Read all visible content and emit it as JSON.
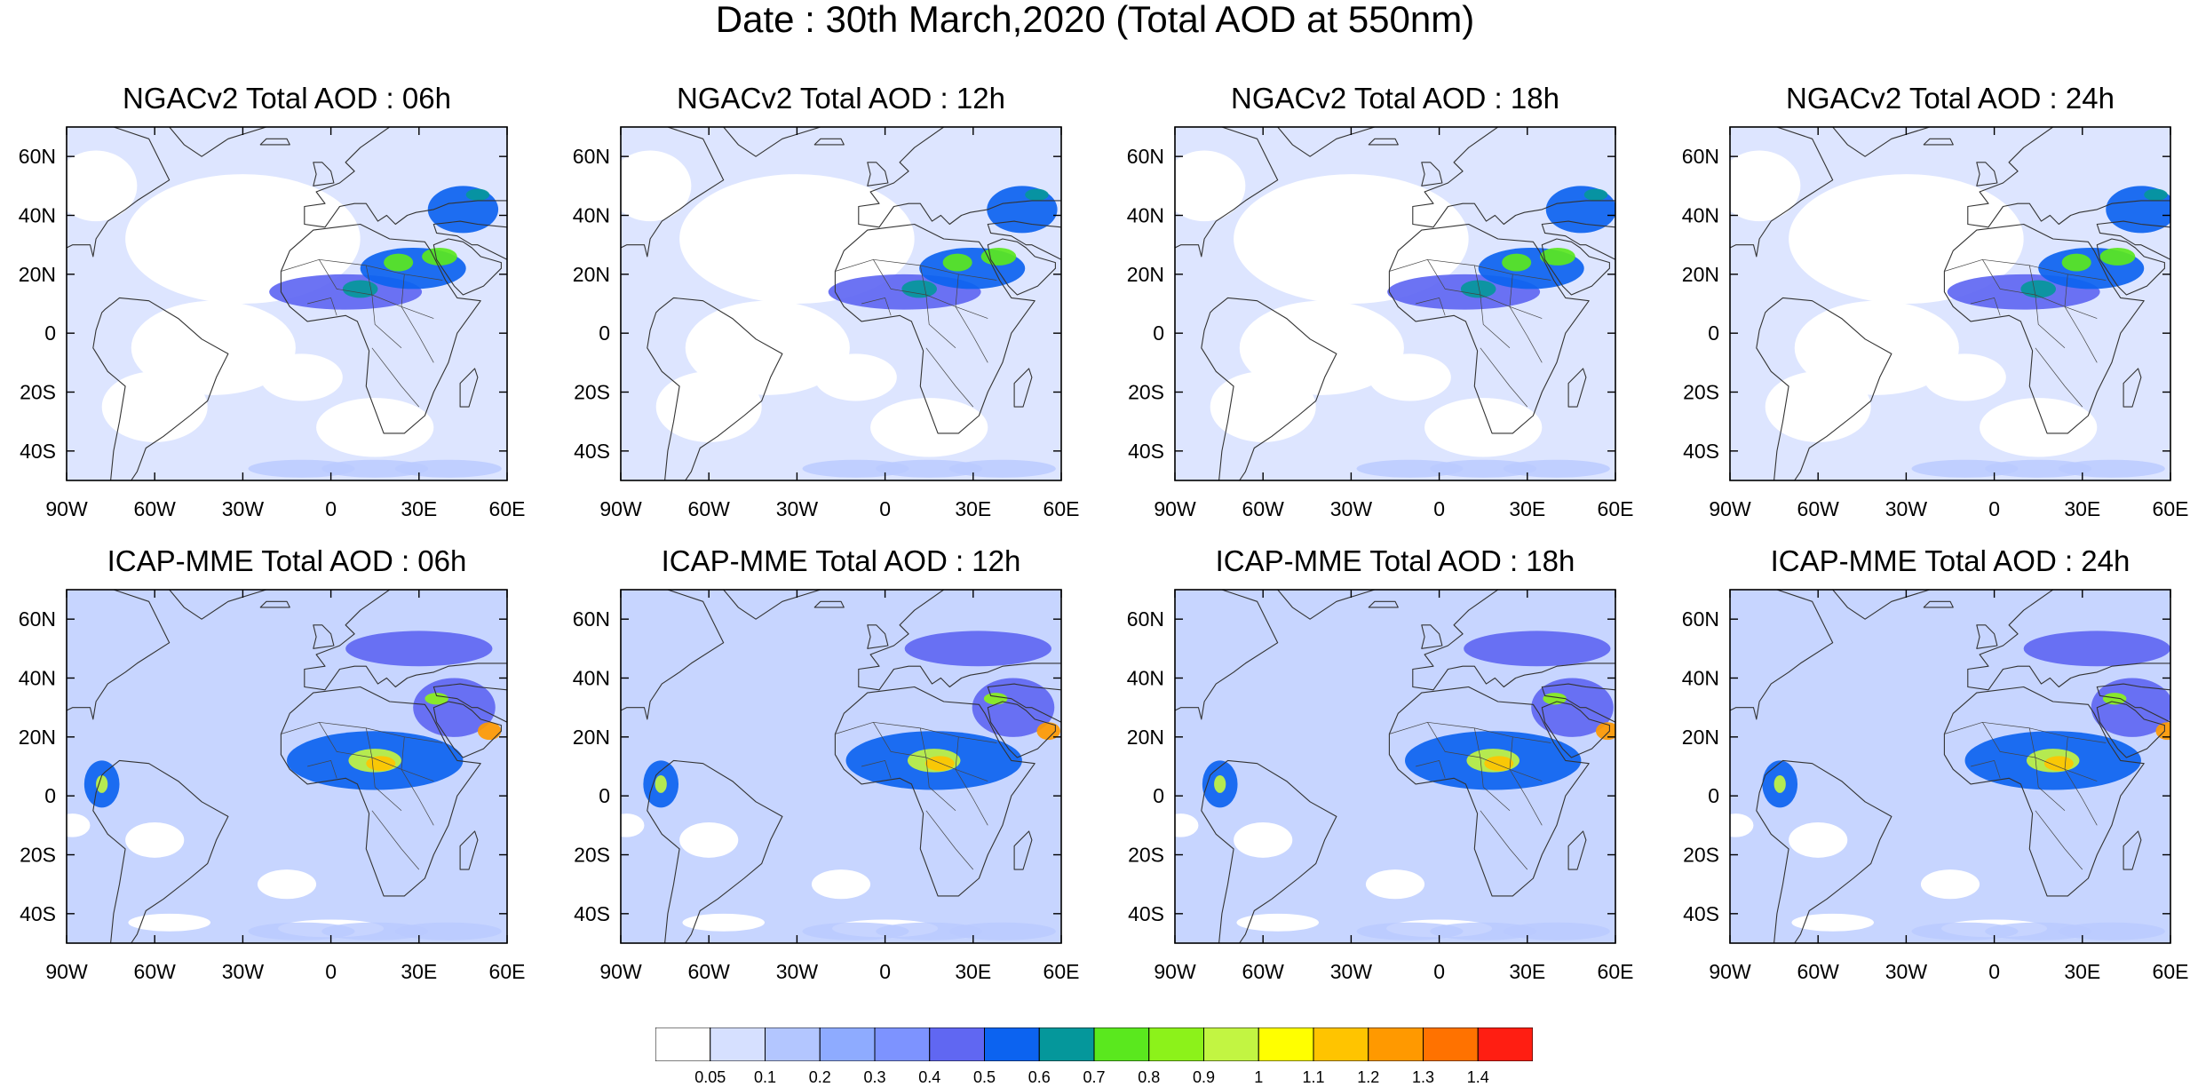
{
  "figure_title": "Date : 30th March,2020 (Total AOD at 550nm)",
  "panels": [
    {
      "id": "ngac-06",
      "title": "NGACv2 Total AOD : 06h",
      "model": "ngac",
      "hour": 6
    },
    {
      "id": "ngac-12",
      "title": "NGACv2 Total AOD : 12h",
      "model": "ngac",
      "hour": 12
    },
    {
      "id": "ngac-18",
      "title": "NGACv2 Total AOD : 18h",
      "model": "ngac",
      "hour": 18
    },
    {
      "id": "ngac-24",
      "title": "NGACv2 Total AOD : 24h",
      "model": "ngac",
      "hour": 24
    },
    {
      "id": "icap-06",
      "title": "ICAP-MME Total AOD : 06h",
      "model": "icap",
      "hour": 6
    },
    {
      "id": "icap-12",
      "title": "ICAP-MME Total AOD : 12h",
      "model": "icap",
      "hour": 12
    },
    {
      "id": "icap-18",
      "title": "ICAP-MME Total AOD : 18h",
      "model": "icap",
      "hour": 18
    },
    {
      "id": "icap-24",
      "title": "ICAP-MME Total AOD : 24h",
      "model": "icap",
      "hour": 24
    }
  ],
  "map_extent": {
    "lon": [
      -90,
      60
    ],
    "lat": [
      -50,
      70
    ]
  },
  "lon_ticks": [
    {
      "v": -90,
      "label": "90W"
    },
    {
      "v": -60,
      "label": "60W"
    },
    {
      "v": -30,
      "label": "30W"
    },
    {
      "v": 0,
      "label": "0"
    },
    {
      "v": 30,
      "label": "30E"
    },
    {
      "v": 60,
      "label": "60E"
    }
  ],
  "lat_ticks": [
    {
      "v": 60,
      "label": "60N"
    },
    {
      "v": 40,
      "label": "40N"
    },
    {
      "v": 20,
      "label": "20N"
    },
    {
      "v": 0,
      "label": "0"
    },
    {
      "v": -20,
      "label": "20S"
    },
    {
      "v": -40,
      "label": "40S"
    }
  ],
  "colorbar": {
    "colors": [
      "#ffffff",
      "#d6e0ff",
      "#b3c6ff",
      "#8eabff",
      "#7d93ff",
      "#6067f2",
      "#0c63f0",
      "#05979b",
      "#5ae81e",
      "#8cf21a",
      "#c2f542",
      "#ffff00",
      "#ffc400",
      "#ff9900",
      "#ff7200",
      "#ff1e12"
    ],
    "labels": [
      "0.05",
      "0.1",
      "0.2",
      "0.3",
      "0.4",
      "0.5",
      "0.6",
      "0.7",
      "0.8",
      "0.9",
      "1",
      "1.1",
      "1.2",
      "1.3",
      "1.4"
    ]
  },
  "aod_features": {
    "ngac": [
      {
        "lon": 5,
        "lat": 14,
        "rx": 26,
        "ry": 6,
        "v": 0.45
      },
      {
        "lon": 28,
        "lat": 22,
        "rx": 18,
        "ry": 7,
        "v": 0.5
      },
      {
        "lon": 45,
        "lat": 42,
        "rx": 12,
        "ry": 8,
        "v": 0.55
      },
      {
        "lon": 10,
        "lat": 15,
        "rx": 6,
        "ry": 3,
        "v": 0.62
      },
      {
        "lon": 23,
        "lat": 24,
        "rx": 5,
        "ry": 3,
        "v": 0.75
      },
      {
        "lon": 37,
        "lat": 26,
        "rx": 6,
        "ry": 3,
        "v": 0.7
      },
      {
        "lon": 50,
        "lat": 47,
        "rx": 4,
        "ry": 2,
        "v": 0.65
      }
    ],
    "icap": [
      {
        "lon": 15,
        "lat": 12,
        "rx": 30,
        "ry": 10,
        "v": 0.5
      },
      {
        "lon": 42,
        "lat": 30,
        "rx": 14,
        "ry": 10,
        "v": 0.45
      },
      {
        "lon": -78,
        "lat": 4,
        "rx": 6,
        "ry": 8,
        "v": 0.55
      },
      {
        "lon": 30,
        "lat": 50,
        "rx": 25,
        "ry": 6,
        "v": 0.4
      },
      {
        "lon": 15,
        "lat": 12,
        "rx": 9,
        "ry": 4,
        "v": 0.95
      },
      {
        "lon": 17,
        "lat": 11,
        "rx": 5,
        "ry": 2.5,
        "v": 1.15
      },
      {
        "lon": 54,
        "lat": 22,
        "rx": 4,
        "ry": 3,
        "v": 1.2
      },
      {
        "lon": -78,
        "lat": 4,
        "rx": 2,
        "ry": 3,
        "v": 0.9
      },
      {
        "lon": 36,
        "lat": 33,
        "rx": 4,
        "ry": 2,
        "v": 0.8
      }
    ]
  }
}
